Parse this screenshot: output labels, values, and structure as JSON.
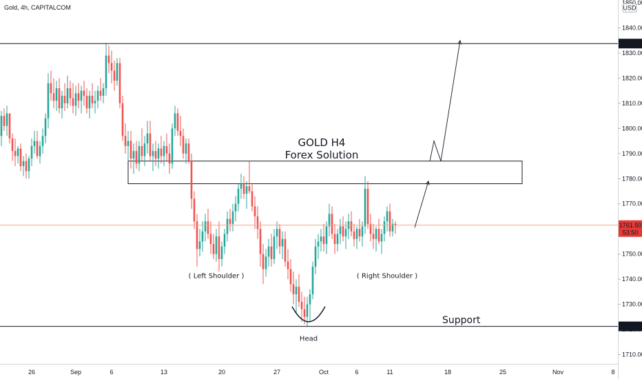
{
  "header": {
    "symbol_line": "Gold, 4h, CAPITALCOM"
  },
  "colors": {
    "up": "#26a69a",
    "down": "#ef5350",
    "last_price_line": "#f4a582",
    "label_dark": "#131722",
    "label_red": "#e53935"
  },
  "chart_data": {
    "type": "candlestick",
    "title": "GOLD H4",
    "subtitle": "Forex Solution",
    "currency": "USD",
    "ylim": [
      1705,
      1850
    ],
    "y_ticks": [
      1710,
      1720,
      1730,
      1740,
      1750,
      1760,
      1770,
      1780,
      1790,
      1800,
      1810,
      1820,
      1830,
      1840
    ],
    "y_tick_labels": [
      "1710.00",
      "1720.00",
      "1730.00",
      "1740.00",
      "1750.00",
      "1760.00",
      "1770.00",
      "1780.00",
      "1790.00",
      "1800.00",
      "1810.00",
      "1820.00",
      "1830.00",
      "1840.00"
    ],
    "top_partial_label": "1850.00",
    "x_ticks": [
      {
        "label": "26",
        "bar": 11
      },
      {
        "label": "Sep",
        "bar": 27
      },
      {
        "label": "6",
        "bar": 40
      },
      {
        "label": "13",
        "bar": 59
      },
      {
        "label": "20",
        "bar": 80
      },
      {
        "label": "27",
        "bar": 100
      },
      {
        "label": "Oct",
        "bar": 117
      },
      {
        "label": "6",
        "bar": 129
      },
      {
        "label": "11",
        "bar": 141
      },
      {
        "label": "18",
        "bar": 162
      },
      {
        "label": "25",
        "bar": 182
      },
      {
        "label": "Nov",
        "bar": 202
      },
      {
        "label": "8",
        "bar": 222
      }
    ],
    "horizontal_levels": [
      {
        "name": "resistance",
        "value": 1833.77,
        "label": "1833.77"
      },
      {
        "name": "support",
        "value": 1721.21,
        "label": "1721.21"
      }
    ],
    "last_price": {
      "value": 1761.5,
      "label": "1761.50",
      "countdown": "53:50"
    },
    "zone": {
      "from_bar": 46,
      "to_bar": 189,
      "top": 1787,
      "bottom": 1778
    },
    "projection": [
      {
        "bar": 150,
        "price": 1760.5
      },
      {
        "bar": 155,
        "price": 1779
      },
      {
        "bar": 155.5,
        "price": 1787
      },
      {
        "bar": 157,
        "price": 1795
      },
      {
        "bar": 159.5,
        "price": 1787
      },
      {
        "bar": 166.5,
        "price": 1835
      }
    ],
    "annotations": {
      "left_shoulder": {
        "text": "( Left Shoulder )",
        "bar": 78,
        "price": 1740.5
      },
      "right_shoulder": {
        "text": "( Right Shoulder )",
        "bar": 140,
        "price": 1740.5
      },
      "head": {
        "text": "Head",
        "bar": 111.5,
        "price": 1715.5
      },
      "support": {
        "text": "Support",
        "bar": 160,
        "price": 1722.5
      }
    },
    "ohlc": [
      [
        1797,
        1807,
        1793,
        1805
      ],
      [
        1805,
        1808,
        1799,
        1801
      ],
      [
        1801,
        1809,
        1797,
        1806
      ],
      [
        1806,
        1806,
        1794,
        1796
      ],
      [
        1796,
        1798,
        1787,
        1791
      ],
      [
        1791,
        1796,
        1785,
        1789
      ],
      [
        1789,
        1793,
        1786,
        1792
      ],
      [
        1792,
        1794,
        1783,
        1785
      ],
      [
        1785,
        1789,
        1781,
        1787
      ],
      [
        1787,
        1790,
        1780,
        1783
      ],
      [
        1783,
        1789,
        1780,
        1788
      ],
      [
        1788,
        1796,
        1785,
        1793
      ],
      [
        1793,
        1799,
        1790,
        1795
      ],
      [
        1795,
        1799,
        1788,
        1789
      ],
      [
        1789,
        1795,
        1786,
        1793
      ],
      [
        1793,
        1800,
        1790,
        1797
      ],
      [
        1797,
        1806,
        1794,
        1804
      ],
      [
        1804,
        1822,
        1800,
        1818
      ],
      [
        1818,
        1823,
        1811,
        1814
      ],
      [
        1814,
        1820,
        1808,
        1811
      ],
      [
        1811,
        1819,
        1807,
        1816
      ],
      [
        1816,
        1820,
        1806,
        1808
      ],
      [
        1808,
        1815,
        1804,
        1813
      ],
      [
        1813,
        1818,
        1807,
        1810
      ],
      [
        1810,
        1821,
        1808,
        1816
      ],
      [
        1816,
        1819,
        1809,
        1812
      ],
      [
        1812,
        1818,
        1806,
        1809
      ],
      [
        1809,
        1817,
        1805,
        1814
      ],
      [
        1814,
        1818,
        1808,
        1811
      ],
      [
        1811,
        1817,
        1806,
        1815
      ],
      [
        1815,
        1819,
        1809,
        1813
      ],
      [
        1813,
        1816,
        1806,
        1808
      ],
      [
        1808,
        1815,
        1804,
        1813
      ],
      [
        1813,
        1818,
        1808,
        1810
      ],
      [
        1810,
        1815,
        1806,
        1811
      ],
      [
        1811,
        1817,
        1808,
        1815
      ],
      [
        1815,
        1820,
        1811,
        1813
      ],
      [
        1813,
        1818,
        1810,
        1816
      ],
      [
        1816,
        1834,
        1813,
        1829
      ],
      [
        1829,
        1833,
        1822,
        1826
      ],
      [
        1826,
        1831,
        1818,
        1823
      ],
      [
        1823,
        1827,
        1815,
        1819
      ],
      [
        1819,
        1828,
        1817,
        1826
      ],
      [
        1826,
        1828,
        1808,
        1810
      ],
      [
        1810,
        1813,
        1795,
        1797
      ],
      [
        1797,
        1802,
        1790,
        1793
      ],
      [
        1793,
        1799,
        1787,
        1795
      ],
      [
        1795,
        1799,
        1784,
        1788
      ],
      [
        1788,
        1794,
        1782,
        1791
      ],
      [
        1791,
        1795,
        1784,
        1786
      ],
      [
        1786,
        1795,
        1783,
        1793
      ],
      [
        1793,
        1800,
        1787,
        1789
      ],
      [
        1789,
        1797,
        1785,
        1794
      ],
      [
        1794,
        1803,
        1790,
        1798
      ],
      [
        1798,
        1803,
        1787,
        1789
      ],
      [
        1789,
        1794,
        1783,
        1791
      ],
      [
        1791,
        1795,
        1785,
        1788
      ],
      [
        1788,
        1794,
        1784,
        1792
      ],
      [
        1792,
        1797,
        1786,
        1789
      ],
      [
        1789,
        1795,
        1785,
        1793
      ],
      [
        1793,
        1798,
        1787,
        1790
      ],
      [
        1790,
        1794,
        1782,
        1786
      ],
      [
        1786,
        1802,
        1784,
        1800
      ],
      [
        1800,
        1809,
        1797,
        1806
      ],
      [
        1806,
        1808,
        1797,
        1799
      ],
      [
        1799,
        1805,
        1793,
        1797
      ],
      [
        1797,
        1800,
        1788,
        1790
      ],
      [
        1790,
        1796,
        1786,
        1794
      ],
      [
        1794,
        1796,
        1786,
        1787
      ],
      [
        1787,
        1790,
        1768,
        1772
      ],
      [
        1772,
        1775,
        1760,
        1763
      ],
      [
        1763,
        1766,
        1745,
        1752
      ],
      [
        1752,
        1760,
        1749,
        1755
      ],
      [
        1755,
        1763,
        1751,
        1759
      ],
      [
        1759,
        1766,
        1755,
        1763
      ],
      [
        1763,
        1768,
        1756,
        1758
      ],
      [
        1758,
        1763,
        1750,
        1754
      ],
      [
        1754,
        1758,
        1748,
        1750
      ],
      [
        1750,
        1760,
        1747,
        1757
      ],
      [
        1757,
        1763,
        1743,
        1748
      ],
      [
        1748,
        1755,
        1745,
        1753
      ],
      [
        1753,
        1760,
        1750,
        1758
      ],
      [
        1758,
        1767,
        1755,
        1764
      ],
      [
        1764,
        1768,
        1759,
        1762
      ],
      [
        1762,
        1770,
        1759,
        1767
      ],
      [
        1767,
        1773,
        1763,
        1770
      ],
      [
        1770,
        1778,
        1767,
        1776
      ],
      [
        1776,
        1782,
        1772,
        1778
      ],
      [
        1778,
        1781,
        1772,
        1774
      ],
      [
        1774,
        1779,
        1768,
        1777
      ],
      [
        1777,
        1787,
        1774,
        1775
      ],
      [
        1775,
        1778,
        1767,
        1769
      ],
      [
        1769,
        1773,
        1760,
        1765
      ],
      [
        1765,
        1769,
        1756,
        1760
      ],
      [
        1760,
        1763,
        1745,
        1750
      ],
      [
        1750,
        1754,
        1738,
        1744
      ],
      [
        1744,
        1752,
        1741,
        1749
      ],
      [
        1749,
        1756,
        1745,
        1753
      ],
      [
        1753,
        1758,
        1745,
        1748
      ],
      [
        1748,
        1760,
        1746,
        1757
      ],
      [
        1757,
        1763,
        1752,
        1760
      ],
      [
        1760,
        1762,
        1750,
        1753
      ],
      [
        1753,
        1759,
        1748,
        1756
      ],
      [
        1756,
        1759,
        1745,
        1747
      ],
      [
        1747,
        1752,
        1740,
        1744
      ],
      [
        1744,
        1748,
        1735,
        1738
      ],
      [
        1738,
        1743,
        1730,
        1734
      ],
      [
        1734,
        1740,
        1726,
        1737
      ],
      [
        1737,
        1742,
        1729,
        1731
      ],
      [
        1731,
        1735,
        1723,
        1728
      ],
      [
        1728,
        1733,
        1722,
        1725
      ],
      [
        1725,
        1733,
        1721,
        1730
      ],
      [
        1730,
        1736,
        1723,
        1734
      ],
      [
        1734,
        1747,
        1732,
        1745
      ],
      [
        1745,
        1756,
        1742,
        1753
      ],
      [
        1753,
        1758,
        1748,
        1755
      ],
      [
        1755,
        1760,
        1751,
        1757
      ],
      [
        1757,
        1762,
        1751,
        1754
      ],
      [
        1754,
        1763,
        1750,
        1761
      ],
      [
        1761,
        1770,
        1757,
        1766
      ],
      [
        1766,
        1769,
        1756,
        1758
      ],
      [
        1758,
        1762,
        1750,
        1754
      ],
      [
        1754,
        1760,
        1751,
        1758
      ],
      [
        1758,
        1764,
        1754,
        1761
      ],
      [
        1761,
        1765,
        1755,
        1757
      ],
      [
        1757,
        1763,
        1752,
        1760
      ],
      [
        1760,
        1766,
        1756,
        1763
      ],
      [
        1763,
        1767,
        1757,
        1759
      ],
      [
        1759,
        1762,
        1753,
        1756
      ],
      [
        1756,
        1761,
        1752,
        1760
      ],
      [
        1760,
        1764,
        1755,
        1757
      ],
      [
        1757,
        1763,
        1753,
        1761
      ],
      [
        1761,
        1781,
        1758,
        1776
      ],
      [
        1776,
        1779,
        1760,
        1762
      ],
      [
        1762,
        1766,
        1755,
        1758
      ],
      [
        1758,
        1762,
        1752,
        1756
      ],
      [
        1756,
        1761,
        1751,
        1760
      ],
      [
        1760,
        1764,
        1754,
        1755
      ],
      [
        1755,
        1760,
        1750,
        1758
      ],
      [
        1758,
        1765,
        1755,
        1763
      ],
      [
        1763,
        1769,
        1759,
        1767
      ],
      [
        1767,
        1770,
        1757,
        1759
      ],
      [
        1759,
        1764,
        1757,
        1762
      ],
      [
        1762,
        1763,
        1758,
        1761.5
      ]
    ]
  }
}
